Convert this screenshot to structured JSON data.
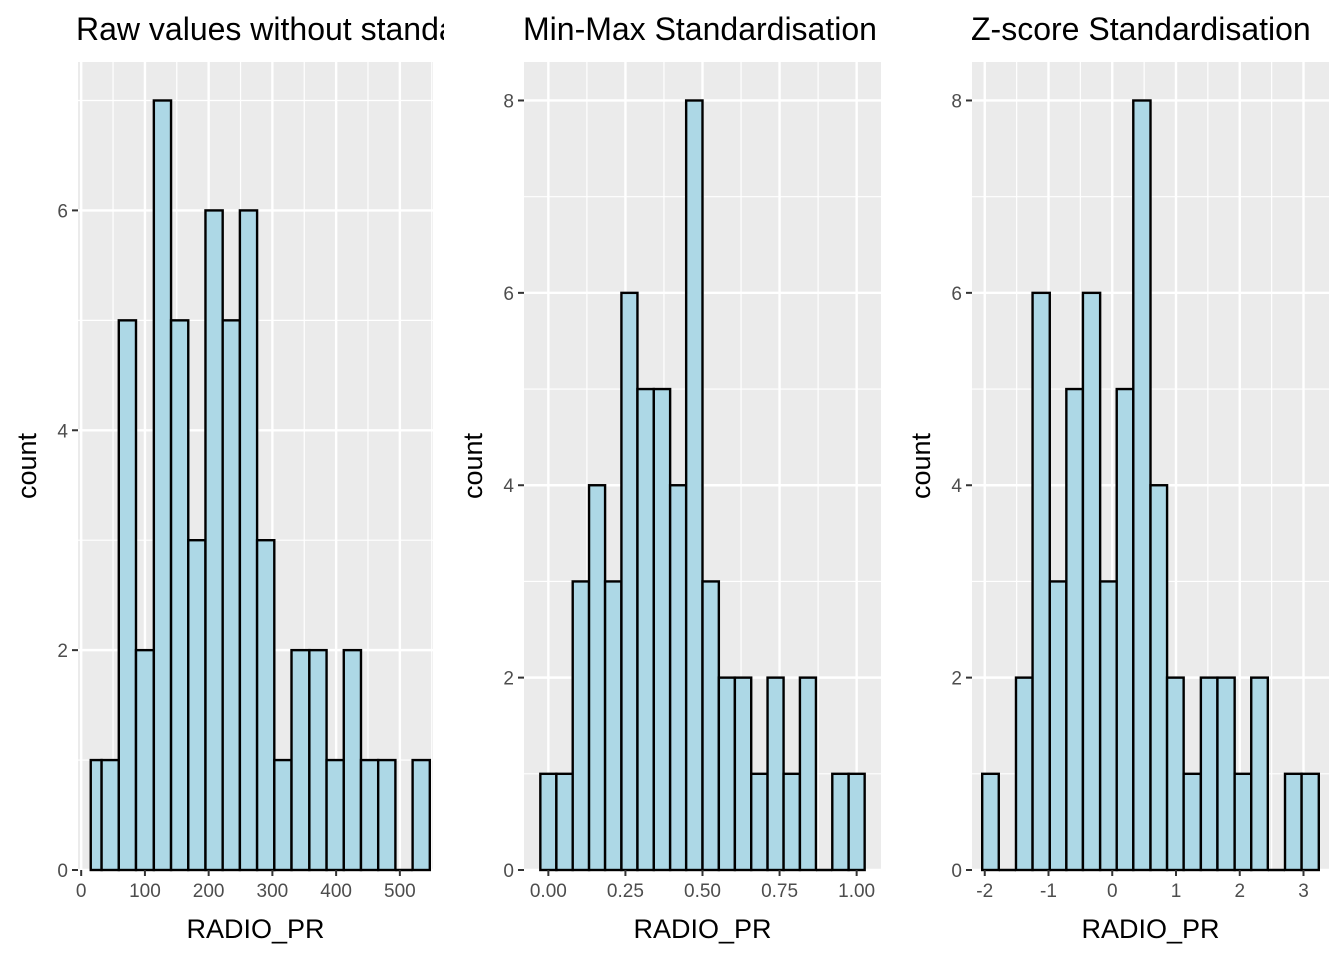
{
  "chart_data": [
    {
      "type": "bar",
      "title": "Raw values without standardisation",
      "xlabel": "RADIO_PR",
      "ylabel": "count",
      "bins": [
        {
          "x0": 15.0,
          "x1": 32.0,
          "count": 1
        },
        {
          "x0": 32.0,
          "x1": 59.0,
          "count": 1
        },
        {
          "x0": 59.0,
          "x1": 86.0,
          "count": 5
        },
        {
          "x0": 86.0,
          "x1": 114.0,
          "count": 2
        },
        {
          "x0": 114.0,
          "x1": 141.0,
          "count": 7
        },
        {
          "x0": 141.0,
          "x1": 168.0,
          "count": 5
        },
        {
          "x0": 168.0,
          "x1": 195.0,
          "count": 3
        },
        {
          "x0": 195.0,
          "x1": 222.0,
          "count": 6
        },
        {
          "x0": 222.0,
          "x1": 249.0,
          "count": 5
        },
        {
          "x0": 249.0,
          "x1": 276.0,
          "count": 6
        },
        {
          "x0": 276.0,
          "x1": 303.0,
          "count": 3
        },
        {
          "x0": 303.0,
          "x1": 330.0,
          "count": 1
        },
        {
          "x0": 330.0,
          "x1": 358.0,
          "count": 2
        },
        {
          "x0": 358.0,
          "x1": 385.0,
          "count": 2
        },
        {
          "x0": 385.0,
          "x1": 412.0,
          "count": 1
        },
        {
          "x0": 412.0,
          "x1": 439.0,
          "count": 2
        },
        {
          "x0": 439.0,
          "x1": 466.0,
          "count": 1
        },
        {
          "x0": 466.0,
          "x1": 493.0,
          "count": 1
        },
        {
          "x0": 493.0,
          "x1": 520.0,
          "count": 0
        },
        {
          "x0": 520.0,
          "x1": 547.0,
          "count": 1
        }
      ],
      "xlim": [
        -5,
        552
      ],
      "ylim": [
        0,
        7.35
      ],
      "xticks": [
        0,
        100,
        200,
        300,
        400,
        500
      ],
      "xtick_labels": [
        "0",
        "100",
        "200",
        "300",
        "400",
        "500"
      ],
      "yticks": [
        0,
        2,
        4,
        6
      ],
      "ytick_labels": [
        "0",
        "2",
        "4",
        "6"
      ],
      "grid": true,
      "fill_color": "#add8e6",
      "edge_color": "#000000",
      "panel_bg": "#ebebeb",
      "grid_color": "#ffffff"
    },
    {
      "type": "bar",
      "title": "Min-Max Standardisation",
      "xlabel": "RADIO_PR",
      "ylabel": "count",
      "bins": [
        {
          "x0": -0.026,
          "x1": 0.026,
          "count": 1
        },
        {
          "x0": 0.026,
          "x1": 0.079,
          "count": 1
        },
        {
          "x0": 0.079,
          "x1": 0.132,
          "count": 3
        },
        {
          "x0": 0.132,
          "x1": 0.184,
          "count": 4
        },
        {
          "x0": 0.184,
          "x1": 0.237,
          "count": 3
        },
        {
          "x0": 0.237,
          "x1": 0.289,
          "count": 6
        },
        {
          "x0": 0.289,
          "x1": 0.342,
          "count": 5
        },
        {
          "x0": 0.342,
          "x1": 0.395,
          "count": 5
        },
        {
          "x0": 0.395,
          "x1": 0.447,
          "count": 4
        },
        {
          "x0": 0.447,
          "x1": 0.5,
          "count": 8
        },
        {
          "x0": 0.5,
          "x1": 0.553,
          "count": 3
        },
        {
          "x0": 0.553,
          "x1": 0.605,
          "count": 2
        },
        {
          "x0": 0.605,
          "x1": 0.658,
          "count": 2
        },
        {
          "x0": 0.658,
          "x1": 0.711,
          "count": 1
        },
        {
          "x0": 0.711,
          "x1": 0.763,
          "count": 2
        },
        {
          "x0": 0.763,
          "x1": 0.816,
          "count": 1
        },
        {
          "x0": 0.816,
          "x1": 0.868,
          "count": 2
        },
        {
          "x0": 0.868,
          "x1": 0.921,
          "count": 0
        },
        {
          "x0": 0.921,
          "x1": 0.974,
          "count": 1
        },
        {
          "x0": 0.974,
          "x1": 1.026,
          "count": 1
        }
      ],
      "xlim": [
        -0.079,
        1.079
      ],
      "ylim": [
        0,
        8.4
      ],
      "xticks": [
        0,
        0.25,
        0.5,
        0.75,
        1.0
      ],
      "xtick_labels": [
        "0.00",
        "0.25",
        "0.50",
        "0.75",
        "1.00"
      ],
      "yticks": [
        0,
        2,
        4,
        6,
        8
      ],
      "ytick_labels": [
        "0",
        "2",
        "4",
        "6",
        "8"
      ],
      "grid": true,
      "fill_color": "#add8e6",
      "edge_color": "#000000",
      "panel_bg": "#ebebeb",
      "grid_color": "#ffffff"
    },
    {
      "type": "bar",
      "title": "Z-score Standardisation",
      "xlabel": "RADIO_PR",
      "ylabel": "count",
      "bins": [
        {
          "x0": -2.04,
          "x1": -1.78,
          "count": 1
        },
        {
          "x0": -1.78,
          "x1": -1.51,
          "count": 0
        },
        {
          "x0": -1.51,
          "x1": -1.25,
          "count": 2
        },
        {
          "x0": -1.25,
          "x1": -0.98,
          "count": 6
        },
        {
          "x0": -0.98,
          "x1": -0.72,
          "count": 3
        },
        {
          "x0": -0.72,
          "x1": -0.46,
          "count": 5
        },
        {
          "x0": -0.46,
          "x1": -0.19,
          "count": 6
        },
        {
          "x0": -0.19,
          "x1": 0.07,
          "count": 3
        },
        {
          "x0": 0.07,
          "x1": 0.33,
          "count": 5
        },
        {
          "x0": 0.33,
          "x1": 0.6,
          "count": 8
        },
        {
          "x0": 0.6,
          "x1": 0.86,
          "count": 4
        },
        {
          "x0": 0.86,
          "x1": 1.12,
          "count": 2
        },
        {
          "x0": 1.12,
          "x1": 1.39,
          "count": 1
        },
        {
          "x0": 1.39,
          "x1": 1.65,
          "count": 2
        },
        {
          "x0": 1.65,
          "x1": 1.92,
          "count": 2
        },
        {
          "x0": 1.92,
          "x1": 2.18,
          "count": 1
        },
        {
          "x0": 2.18,
          "x1": 2.44,
          "count": 2
        },
        {
          "x0": 2.44,
          "x1": 2.71,
          "count": 0
        },
        {
          "x0": 2.71,
          "x1": 2.97,
          "count": 1
        },
        {
          "x0": 2.97,
          "x1": 3.24,
          "count": 1
        }
      ],
      "xlim": [
        -2.2,
        3.4
      ],
      "ylim": [
        0,
        8.4
      ],
      "xticks": [
        -2,
        -1,
        0,
        1,
        2,
        3
      ],
      "xtick_labels": [
        "-2",
        "-1",
        "0",
        "1",
        "2",
        "3"
      ],
      "yticks": [
        0,
        2,
        4,
        6,
        8
      ],
      "ytick_labels": [
        "0",
        "2",
        "4",
        "6",
        "8"
      ],
      "grid": true,
      "fill_color": "#add8e6",
      "edge_color": "#000000",
      "panel_bg": "#ebebeb",
      "grid_color": "#ffffff"
    }
  ]
}
